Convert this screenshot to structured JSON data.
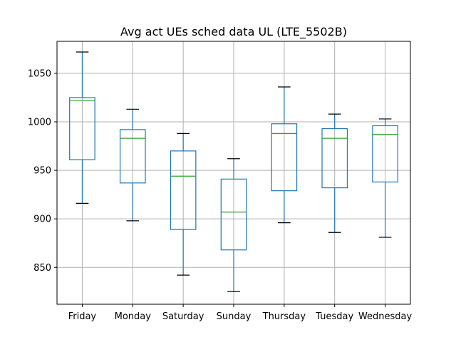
{
  "chart_data": {
    "type": "box",
    "title": "Avg act UEs sched data UL (LTE_5502B)",
    "xlabel": "",
    "ylabel": "",
    "categories": [
      "Friday",
      "Monday",
      "Saturday",
      "Sunday",
      "Thursday",
      "Tuesday",
      "Wednesday"
    ],
    "boxes": [
      {
        "category": "Friday",
        "whisker_low": 916,
        "q1": 961,
        "median": 1022,
        "q3": 1025,
        "whisker_high": 1072
      },
      {
        "category": "Monday",
        "whisker_low": 898,
        "q1": 937,
        "median": 983,
        "q3": 992,
        "whisker_high": 1013
      },
      {
        "category": "Saturday",
        "whisker_low": 842,
        "q1": 889,
        "median": 944,
        "q3": 970,
        "whisker_high": 988
      },
      {
        "category": "Sunday",
        "whisker_low": 825,
        "q1": 868,
        "median": 907,
        "q3": 941,
        "whisker_high": 962
      },
      {
        "category": "Thursday",
        "whisker_low": 896,
        "q1": 929,
        "median": 988,
        "q3": 998,
        "whisker_high": 1036
      },
      {
        "category": "Tuesday",
        "whisker_low": 886,
        "q1": 932,
        "median": 983,
        "q3": 993,
        "whisker_high": 1008
      },
      {
        "category": "Wednesday",
        "whisker_low": 881,
        "q1": 938,
        "median": 987,
        "q3": 996,
        "whisker_high": 1003
      }
    ],
    "yticks": [
      850,
      900,
      950,
      1000,
      1050
    ],
    "ylim": [
      812,
      1083
    ],
    "grid": true,
    "colors": {
      "box": "#1f77b4",
      "median": "#2ca02c",
      "whisker_cap": "#000000",
      "grid": "#b0b0b0"
    }
  }
}
